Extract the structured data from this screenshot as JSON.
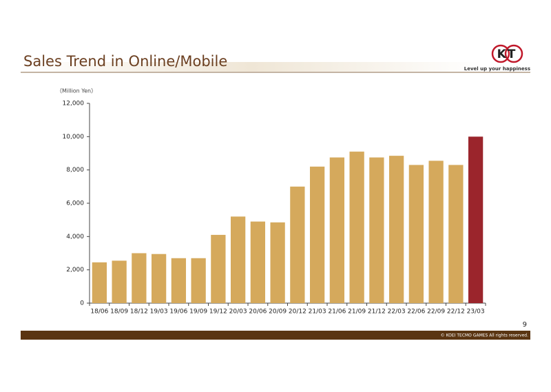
{
  "header": {
    "title": "Sales Trend in Online/Mobile",
    "logo": "KT",
    "tagline": "Level up your happiness"
  },
  "chart_data": {
    "type": "bar",
    "y_label": "（Million Yen）",
    "categories": [
      "18/06",
      "18/09",
      "18/12",
      "19/03",
      "19/06",
      "19/09",
      "19/12",
      "20/03",
      "20/06",
      "20/09",
      "20/12",
      "21/03",
      "21/06",
      "21/09",
      "21/12",
      "22/03",
      "22/06",
      "22/09",
      "22/12",
      "23/03"
    ],
    "values": [
      2450,
      2550,
      3000,
      2950,
      2700,
      2700,
      4100,
      5200,
      4900,
      4850,
      7000,
      8200,
      8750,
      9100,
      8750,
      8850,
      8300,
      8550,
      8300,
      10000
    ],
    "colors": [
      "#d5a95c",
      "#d5a95c",
      "#d5a95c",
      "#d5a95c",
      "#d5a95c",
      "#d5a95c",
      "#d5a95c",
      "#d5a95c",
      "#d5a95c",
      "#d5a95c",
      "#d5a95c",
      "#d5a95c",
      "#d5a95c",
      "#d5a95c",
      "#d5a95c",
      "#d5a95c",
      "#d5a95c",
      "#d5a95c",
      "#d5a95c",
      "#9b252c"
    ],
    "ylim": [
      0,
      12000
    ],
    "yticks": [
      0,
      {
        "value": 2000,
        "label": "2,000"
      },
      {
        "value": 4000,
        "label": "4,000"
      },
      {
        "value": 6000,
        "label": "6,000"
      },
      {
        "value": 8000,
        "label": "8,000"
      },
      {
        "value": 10000,
        "label": "10,000"
      },
      {
        "value": 12000,
        "label": "12,000"
      }
    ],
    "grid": false
  },
  "footer": {
    "page": "9",
    "copyright": "© KOEI TECMO GAMES All rights reserved."
  }
}
